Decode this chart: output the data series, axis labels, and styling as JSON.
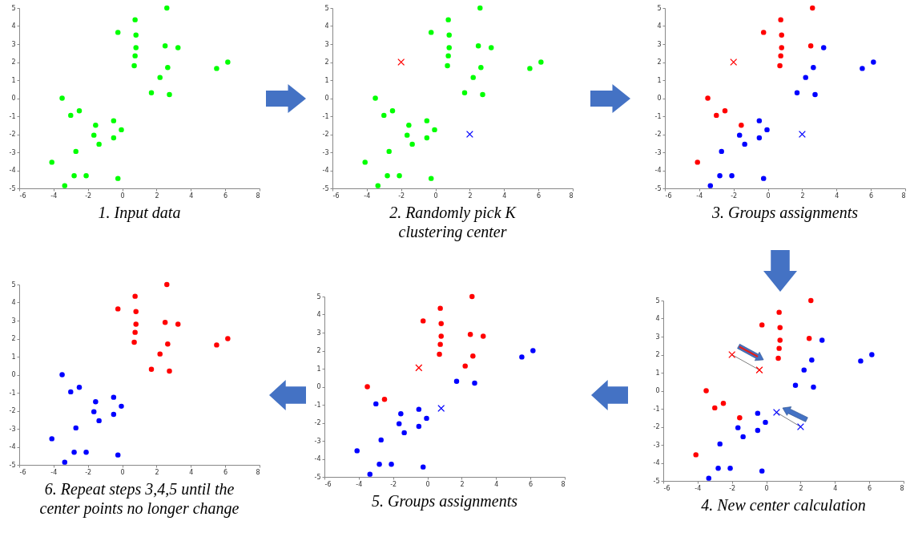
{
  "chart_data": [
    {
      "type": "scatter",
      "title": "1. Input data",
      "xlim": [
        -6,
        8
      ],
      "xticks": [
        -6,
        -4,
        -2,
        0,
        2,
        4,
        6,
        8
      ],
      "ylim": [
        -5,
        5
      ],
      "yticks": [
        -5,
        -4,
        -3,
        -2,
        -1,
        0,
        1,
        2,
        3,
        4,
        5
      ],
      "series": [
        {
          "color": "#00ff00",
          "marker": "circle",
          "x": [
            -0.25,
            0.75,
            0.8,
            0.8,
            0.75,
            0.7,
            2.6,
            2.5,
            3.25,
            2.65,
            2.2,
            1.7,
            2.75,
            5.5,
            6.15,
            -3.5,
            -3,
            -2.5,
            -1.55,
            -1.65,
            -1.35,
            -0.5,
            -0.05,
            -0.5,
            -2.7,
            -4.1,
            -2.8,
            -2.1,
            -0.25,
            -3.35
          ],
          "values": [
            3.65,
            4.35,
            3.5,
            2.8,
            2.35,
            1.8,
            5,
            2.9,
            2.8,
            1.7,
            1.15,
            0.3,
            0.2,
            1.65,
            2,
            0,
            -0.95,
            -0.7,
            -1.5,
            -2.05,
            -2.55,
            -1.25,
            -1.75,
            -2.2,
            -2.95,
            -3.55,
            -4.3,
            -4.3,
            -4.45,
            -4.85
          ]
        }
      ]
    },
    {
      "type": "scatter",
      "title": "2. Randomly pick K\nclustering center",
      "xlim": [
        -6,
        8
      ],
      "xticks": [
        -6,
        -4,
        -2,
        0,
        2,
        4,
        6,
        8
      ],
      "ylim": [
        -5,
        5
      ],
      "yticks": [
        -5,
        -4,
        -3,
        -2,
        -1,
        0,
        1,
        2,
        3,
        4,
        5
      ],
      "series": [
        {
          "color": "#00ff00",
          "marker": "circle",
          "x": [
            -0.25,
            0.75,
            0.8,
            0.8,
            0.75,
            0.7,
            2.6,
            2.5,
            3.25,
            2.65,
            2.2,
            1.7,
            2.75,
            5.5,
            6.15,
            -3.5,
            -3,
            -2.5,
            -1.55,
            -1.65,
            -1.35,
            -0.5,
            -0.05,
            -0.5,
            -2.7,
            -4.1,
            -2.8,
            -2.1,
            -0.25,
            -3.35
          ],
          "values": [
            3.65,
            4.35,
            3.5,
            2.8,
            2.35,
            1.8,
            5,
            2.9,
            2.8,
            1.7,
            1.15,
            0.3,
            0.2,
            1.65,
            2,
            0,
            -0.95,
            -0.7,
            -1.5,
            -2.05,
            -2.55,
            -1.25,
            -1.75,
            -2.2,
            -2.95,
            -3.55,
            -4.3,
            -4.3,
            -4.45,
            -4.85
          ]
        },
        {
          "color": "#ff0000",
          "marker": "cross",
          "x": [
            -2
          ],
          "values": [
            2
          ]
        },
        {
          "color": "#0000ff",
          "marker": "cross",
          "x": [
            2
          ],
          "values": [
            -2
          ]
        }
      ]
    },
    {
      "type": "scatter",
      "title": "3. Groups assignments",
      "xlim": [
        -6,
        8
      ],
      "xticks": [
        -6,
        -4,
        -2,
        0,
        2,
        4,
        6,
        8
      ],
      "ylim": [
        -5,
        5
      ],
      "yticks": [
        -5,
        -4,
        -3,
        -2,
        -1,
        0,
        1,
        2,
        3,
        4,
        5
      ],
      "series": [
        {
          "color": "#ff0000",
          "marker": "circle",
          "x": [
            -0.25,
            0.75,
            0.8,
            0.8,
            0.75,
            0.7,
            2.6,
            2.5,
            -3.5,
            -3,
            -2.5,
            -1.55,
            -4.1
          ],
          "values": [
            3.65,
            4.35,
            3.5,
            2.8,
            2.35,
            1.8,
            5,
            2.9,
            0,
            -0.95,
            -0.7,
            -1.5,
            -3.55
          ]
        },
        {
          "color": "#0000ff",
          "marker": "circle",
          "x": [
            3.25,
            2.65,
            2.2,
            1.7,
            2.75,
            5.5,
            6.15,
            -1.65,
            -1.35,
            -0.5,
            -0.05,
            -0.5,
            -2.7,
            -2.8,
            -2.1,
            -0.25,
            -3.35
          ],
          "values": [
            2.8,
            1.7,
            1.15,
            0.3,
            0.2,
            1.65,
            2,
            -2.05,
            -2.55,
            -1.25,
            -1.75,
            -2.2,
            -2.95,
            -4.3,
            -4.3,
            -4.45,
            -4.85
          ]
        },
        {
          "color": "#ff0000",
          "marker": "cross",
          "x": [
            -2
          ],
          "values": [
            2
          ]
        },
        {
          "color": "#0000ff",
          "marker": "cross",
          "x": [
            2
          ],
          "values": [
            -2
          ]
        }
      ]
    },
    {
      "type": "scatter",
      "title": "4. New center calculation",
      "xlim": [
        -6,
        8
      ],
      "xticks": [
        -6,
        -4,
        -2,
        0,
        2,
        4,
        6,
        8
      ],
      "ylim": [
        -5,
        5
      ],
      "yticks": [
        -5,
        -4,
        -3,
        -2,
        -1,
        0,
        1,
        2,
        3,
        4,
        5
      ],
      "series": [
        {
          "color": "#ff0000",
          "marker": "circle",
          "x": [
            -0.25,
            0.75,
            0.8,
            0.8,
            0.75,
            0.7,
            2.6,
            2.5,
            -3.5,
            -3,
            -2.5,
            -1.55,
            -4.1
          ],
          "values": [
            3.65,
            4.35,
            3.5,
            2.8,
            2.35,
            1.8,
            5,
            2.9,
            0,
            -0.95,
            -0.7,
            -1.5,
            -3.55
          ]
        },
        {
          "color": "#0000ff",
          "marker": "circle",
          "x": [
            3.25,
            2.65,
            2.2,
            1.7,
            2.75,
            5.5,
            6.15,
            -1.65,
            -1.35,
            -0.5,
            -0.05,
            -0.5,
            -2.7,
            -2.8,
            -2.1,
            -0.25,
            -3.35
          ],
          "values": [
            2.8,
            1.7,
            1.15,
            0.3,
            0.2,
            1.65,
            2,
            -2.05,
            -2.55,
            -1.25,
            -1.75,
            -2.2,
            -2.95,
            -4.3,
            -4.3,
            -4.45,
            -4.85
          ]
        },
        {
          "type": "line",
          "color": "#808080",
          "marker": "none",
          "x": [
            -2,
            -0.4
          ],
          "values": [
            2,
            1.15
          ]
        },
        {
          "type": "line",
          "color": "#808080",
          "marker": "none",
          "x": [
            2,
            0.6
          ],
          "values": [
            -2,
            -1.2
          ]
        },
        {
          "color": "#ff0000",
          "marker": "cross",
          "x": [
            -2
          ],
          "values": [
            2
          ]
        },
        {
          "color": "#0000ff",
          "marker": "cross",
          "x": [
            2
          ],
          "values": [
            -2
          ]
        },
        {
          "color": "#ff0000",
          "marker": "cross",
          "x": [
            -0.4
          ],
          "values": [
            1.15
          ]
        },
        {
          "color": "#0000ff",
          "marker": "cross",
          "x": [
            0.6
          ],
          "values": [
            -1.2
          ]
        }
      ]
    },
    {
      "type": "scatter",
      "title": "5. Groups assignments",
      "xlim": [
        -6,
        8
      ],
      "xticks": [
        -6,
        -4,
        -2,
        0,
        2,
        4,
        6,
        8
      ],
      "ylim": [
        -5,
        5
      ],
      "yticks": [
        -5,
        -4,
        -3,
        -2,
        -1,
        0,
        1,
        2,
        3,
        4,
        5
      ],
      "series": [
        {
          "color": "#ff0000",
          "marker": "circle",
          "x": [
            -0.25,
            0.75,
            0.8,
            0.8,
            0.75,
            0.7,
            2.6,
            2.5,
            3.25,
            2.65,
            2.2,
            -3.5,
            -2.5
          ],
          "values": [
            3.65,
            4.35,
            3.5,
            2.8,
            2.35,
            1.8,
            5,
            2.9,
            2.8,
            1.7,
            1.15,
            0,
            -0.7
          ]
        },
        {
          "color": "#0000ff",
          "marker": "circle",
          "x": [
            1.7,
            2.75,
            5.5,
            6.15,
            -3,
            -1.55,
            -1.65,
            -1.35,
            -0.5,
            -0.05,
            -0.5,
            -2.7,
            -4.1,
            -2.8,
            -2.1,
            -0.25,
            -3.35
          ],
          "values": [
            0.3,
            0.2,
            1.65,
            2,
            -0.95,
            -1.5,
            -2.05,
            -2.55,
            -1.25,
            -1.75,
            -2.2,
            -2.95,
            -3.55,
            -4.3,
            -4.3,
            -4.45,
            -4.85
          ]
        },
        {
          "color": "#ff0000",
          "marker": "cross",
          "x": [
            -0.5
          ],
          "values": [
            1.05
          ]
        },
        {
          "color": "#0000ff",
          "marker": "cross",
          "x": [
            0.8
          ],
          "values": [
            -1.2
          ]
        }
      ]
    },
    {
      "type": "scatter",
      "title": "6.  Repeat steps 3,4,5 until the\ncenter points no longer change",
      "xlim": [
        -6,
        8
      ],
      "xticks": [
        -6,
        -4,
        -2,
        0,
        2,
        4,
        6,
        8
      ],
      "ylim": [
        -5,
        5
      ],
      "yticks": [
        -5,
        -4,
        -3,
        -2,
        -1,
        0,
        1,
        2,
        3,
        4,
        5
      ],
      "series": [
        {
          "color": "#ff0000",
          "marker": "circle",
          "x": [
            -0.25,
            0.75,
            0.8,
            0.8,
            0.75,
            0.7,
            2.6,
            2.5,
            3.25,
            2.65,
            2.2,
            1.7,
            2.75,
            5.5,
            6.15
          ],
          "values": [
            3.65,
            4.35,
            3.5,
            2.8,
            2.35,
            1.8,
            5,
            2.9,
            2.8,
            1.7,
            1.15,
            0.3,
            0.2,
            1.65,
            2
          ]
        },
        {
          "color": "#0000ff",
          "marker": "circle",
          "x": [
            -3.5,
            -3,
            -2.5,
            -1.55,
            -1.65,
            -1.35,
            -0.5,
            -0.05,
            -0.5,
            -2.7,
            -4.1,
            -2.8,
            -2.1,
            -0.25,
            -3.35
          ],
          "values": [
            0,
            -0.95,
            -0.7,
            -1.5,
            -2.05,
            -2.55,
            -1.25,
            -1.75,
            -2.2,
            -2.95,
            -3.55,
            -4.3,
            -4.3,
            -4.45,
            -4.85
          ]
        }
      ]
    }
  ]
}
